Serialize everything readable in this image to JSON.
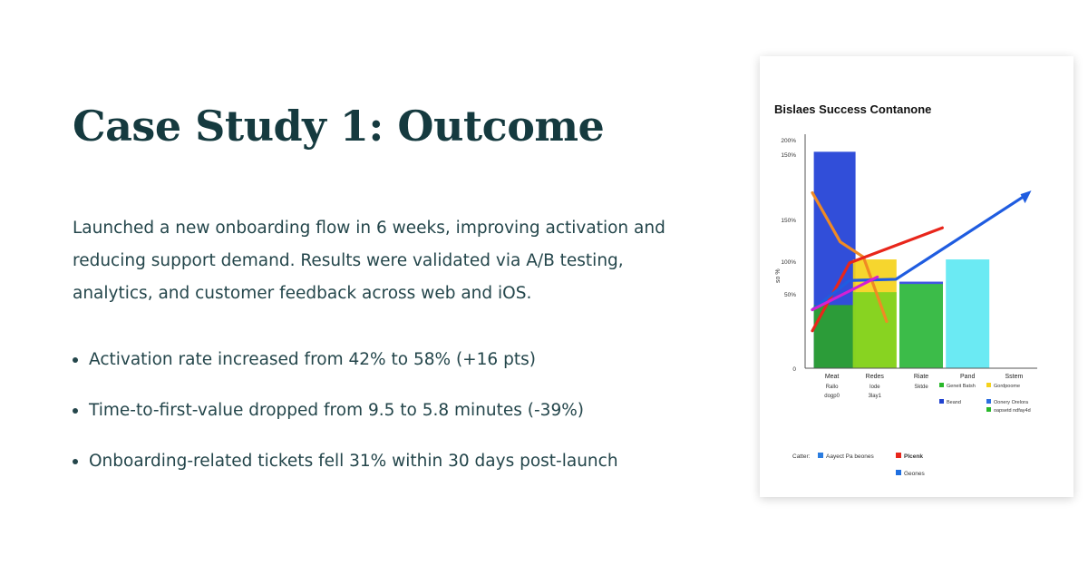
{
  "slide": {
    "title": "Case Study 1: Outcome",
    "intro": "Launched a new onboarding flow in 6 weeks, improving activation and reducing support demand. Results were validated via A/B testing, analytics, and customer feedback across web and iOS.",
    "bullets": [
      "Activation rate increased from 42% to 58% (+16 pts)",
      "Time-to-first-value dropped from 9.5 to 5.8 minutes (-39%)",
      "Onboarding-related tickets fell 31% within 30 days post-launch"
    ]
  },
  "chart_data": {
    "type": "bar",
    "title": "Bislaes Success Contanone",
    "ytick_labels": [
      "0",
      "50%",
      "100%",
      "150%",
      "150%",
      "200%"
    ],
    "ylabel": "so %",
    "ylim": [
      0,
      200
    ],
    "categories": [
      "Meat",
      "Redes",
      "Riate",
      "Pand",
      "Sstem"
    ],
    "category_sublabels": [
      [
        "Rallo",
        "dogp0"
      ],
      [
        "Iode",
        "3lay1"
      ],
      [
        "Sktde"
      ],
      [],
      []
    ],
    "bars": [
      {
        "category": "Meat",
        "value": 185,
        "color": "#1f3fd6"
      },
      {
        "category": "Meat",
        "value": 54,
        "color": "#2ba32b"
      },
      {
        "category": "Redes",
        "value": 93,
        "color": "#f5d21c"
      },
      {
        "category": "Redes",
        "value": 65,
        "color": "#7ed321"
      },
      {
        "category": "Riate",
        "value": 74,
        "color": "#3348e0"
      },
      {
        "category": "Riate",
        "value": 72,
        "color": "#3cc43c"
      },
      {
        "category": "Pand",
        "value": 93,
        "color": "#5ee8f2"
      }
    ],
    "series": [
      {
        "x": [
          0,
          0.6,
          1.1,
          1.6
        ],
        "values": [
          150,
          108,
          95,
          40
        ],
        "color": "#f08a24"
      },
      {
        "x": [
          0,
          0.8,
          2.8
        ],
        "values": [
          32,
          90,
          120
        ],
        "color": "#e8261b"
      },
      {
        "x": [
          0,
          0.8,
          1.8,
          4.6
        ],
        "values": [
          50,
          75,
          76,
          148
        ],
        "color": "#1f5ce0"
      },
      {
        "x": [
          0,
          1.4
        ],
        "values": [
          50,
          78
        ],
        "color": "#d41fd4"
      }
    ],
    "legend_rows": [
      {
        "items": [
          {
            "label": "Geneit Batsh",
            "color": "#29b82a"
          },
          {
            "label": "Gordpoome",
            "color": "#f5d21c"
          }
        ]
      },
      {
        "items": [
          {
            "label": "Beand",
            "color": "#2042d0"
          },
          {
            "label": "Oonery Orelora",
            "color": "#2b6ee0"
          }
        ]
      },
      {
        "items": [
          {
            "label": "oapsetd ndfay4d",
            "color": "#29b82a"
          }
        ]
      }
    ],
    "footer_legend": {
      "prefix": "Catter:",
      "items": [
        {
          "label": "Aayect Pa beones",
          "color": "#2b7de0"
        },
        {
          "label": "Plcenk",
          "color": "#e8261b"
        },
        {
          "label": "Geones",
          "color": "#1f6fe0"
        }
      ]
    }
  }
}
